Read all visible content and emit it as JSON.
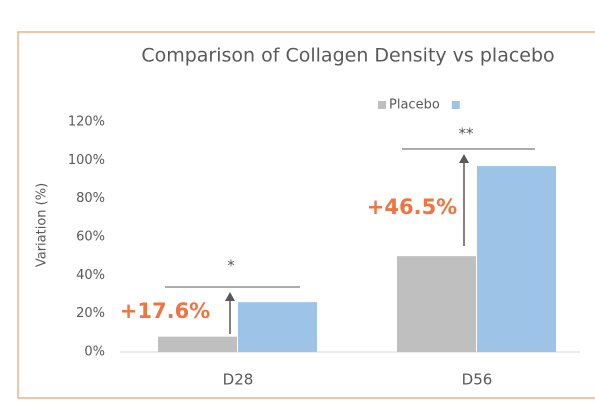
{
  "chart_data": {
    "type": "bar",
    "title": "Comparison of Collagen Density vs placebo",
    "y_label": "Variation (%)",
    "categories": [
      "D28",
      "D56"
    ],
    "series": [
      {
        "name": "Placebo",
        "color": "#bfbfbf",
        "values": [
          8,
          50
        ]
      },
      {
        "name": null,
        "color": "#9dc3e6",
        "values": [
          26,
          97
        ]
      }
    ],
    "ylim": [
      0,
      120
    ],
    "yticks": [
      {
        "value": 0,
        "label": "0%"
      },
      {
        "value": 20,
        "label": "20%"
      },
      {
        "value": 40,
        "label": "40%"
      },
      {
        "value": 60,
        "label": "60%"
      },
      {
        "value": 80,
        "label": "80%"
      },
      {
        "value": 100,
        "label": "100%"
      },
      {
        "value": 120,
        "label": "120%"
      }
    ],
    "grid": false,
    "annotations": [
      "+17.6%",
      "+46.5%",
      "*",
      "**"
    ],
    "annotation_color": "#ee7442"
  }
}
